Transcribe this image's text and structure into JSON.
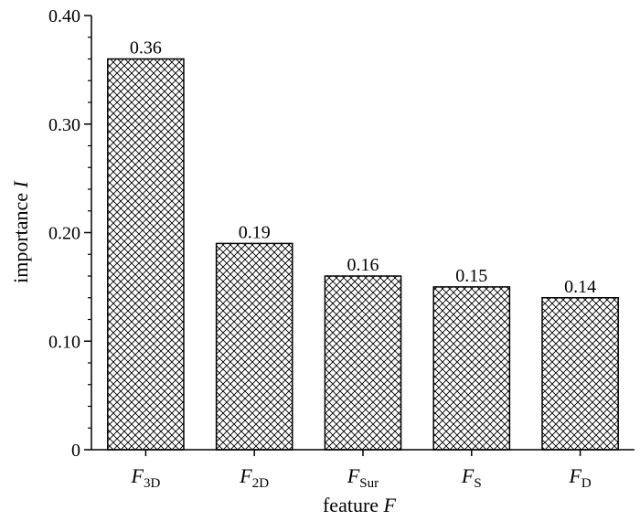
{
  "chart_data": {
    "type": "bar",
    "categories": [
      {
        "main": "F",
        "sub": "3D"
      },
      {
        "main": "F",
        "sub": "2D"
      },
      {
        "main": "F",
        "sub": "Sur"
      },
      {
        "main": "F",
        "sub": "S"
      },
      {
        "main": "F",
        "sub": "D"
      }
    ],
    "values": [
      0.36,
      0.19,
      0.16,
      0.15,
      0.14
    ],
    "data_labels": [
      "0.36",
      "0.19",
      "0.16",
      "0.15",
      "0.14"
    ],
    "title": "",
    "xlabel": {
      "text": "feature ",
      "var": "F"
    },
    "ylabel": {
      "text": "importance ",
      "var": "I"
    },
    "ylim": [
      0,
      0.4
    ],
    "yticks": [
      {
        "value": 0,
        "label": "0"
      },
      {
        "value": 0.1,
        "label": "0.10"
      },
      {
        "value": 0.2,
        "label": "0.20"
      },
      {
        "value": 0.3,
        "label": "0.30"
      },
      {
        "value": 0.4,
        "label": "0.40"
      }
    ],
    "grid": false,
    "bar_fill": "crosshatch",
    "bar_stroke": "#000000",
    "hatch_color": "#000000"
  }
}
